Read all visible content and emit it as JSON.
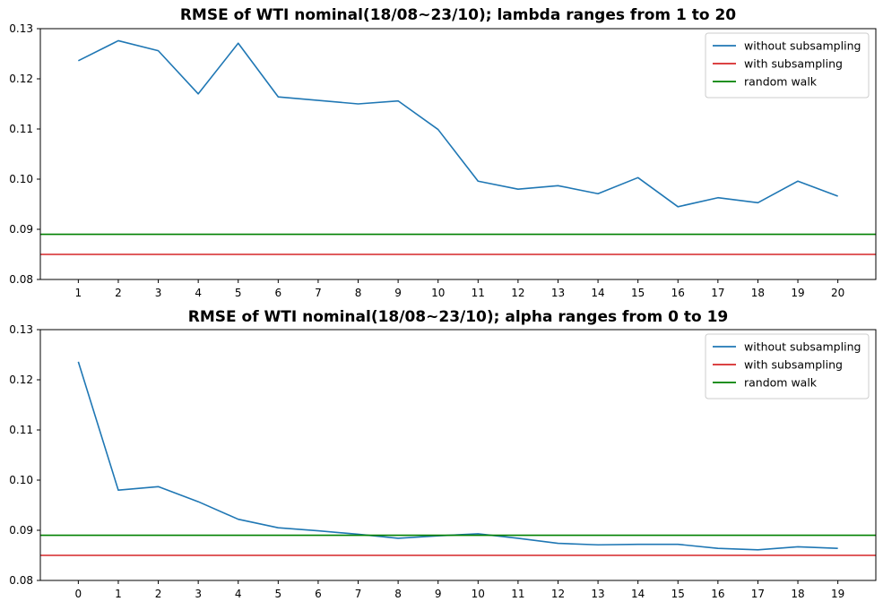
{
  "chart_data": [
    {
      "type": "line",
      "title": "RMSE of WTI nominal(18/08~23/10); lambda ranges from 1 to 20",
      "xlabel": "",
      "ylabel": "",
      "x": [
        1,
        2,
        3,
        4,
        5,
        6,
        7,
        8,
        9,
        10,
        11,
        12,
        13,
        14,
        15,
        16,
        17,
        18,
        19,
        20
      ],
      "xlim": [
        0.05,
        20.95
      ],
      "ylim": [
        0.08,
        0.13
      ],
      "yticks": [
        "0.08",
        "0.09",
        "0.10",
        "0.11",
        "0.12",
        "0.13"
      ],
      "ytick_values": [
        0.08,
        0.09,
        0.1,
        0.11,
        0.12,
        0.13
      ],
      "grid": false,
      "legend_position": "top-right",
      "series": [
        {
          "name": "without subsampling",
          "color": "#1f77b4",
          "kind": "line",
          "values": [
            0.1236,
            0.1276,
            0.1256,
            0.117,
            0.1271,
            0.1164,
            0.1157,
            0.115,
            0.1156,
            0.1099,
            0.0996,
            0.098,
            0.0987,
            0.0971,
            0.1003,
            0.0945,
            0.0963,
            0.0953,
            0.0996,
            0.0966
          ]
        },
        {
          "name": "with subsampling",
          "color": "#d62728",
          "kind": "hline",
          "value": 0.085
        },
        {
          "name": "random walk",
          "color": "#008000",
          "kind": "hline",
          "value": 0.089
        }
      ]
    },
    {
      "type": "line",
      "title": "RMSE of WTI nominal(18/08~23/10); alpha ranges from 0 to 19",
      "xlabel": "",
      "ylabel": "",
      "x": [
        0,
        1,
        2,
        3,
        4,
        5,
        6,
        7,
        8,
        9,
        10,
        11,
        12,
        13,
        14,
        15,
        16,
        17,
        18,
        19
      ],
      "xlim": [
        -0.95,
        19.95
      ],
      "ylim": [
        0.08,
        0.13
      ],
      "yticks": [
        "0.08",
        "0.09",
        "0.10",
        "0.11",
        "0.12",
        "0.13"
      ],
      "ytick_values": [
        0.08,
        0.09,
        0.1,
        0.11,
        0.12,
        0.13
      ],
      "grid": false,
      "legend_position": "top-right",
      "series": [
        {
          "name": "without subsampling",
          "color": "#1f77b4",
          "kind": "line",
          "values": [
            0.1236,
            0.098,
            0.0987,
            0.0957,
            0.0922,
            0.0905,
            0.0899,
            0.0892,
            0.0884,
            0.0889,
            0.0893,
            0.0884,
            0.0874,
            0.0871,
            0.0872,
            0.0872,
            0.0864,
            0.0861,
            0.0867,
            0.0864
          ]
        },
        {
          "name": "with subsampling",
          "color": "#d62728",
          "kind": "hline",
          "value": 0.085
        },
        {
          "name": "random walk",
          "color": "#008000",
          "kind": "hline",
          "value": 0.089
        }
      ]
    }
  ]
}
